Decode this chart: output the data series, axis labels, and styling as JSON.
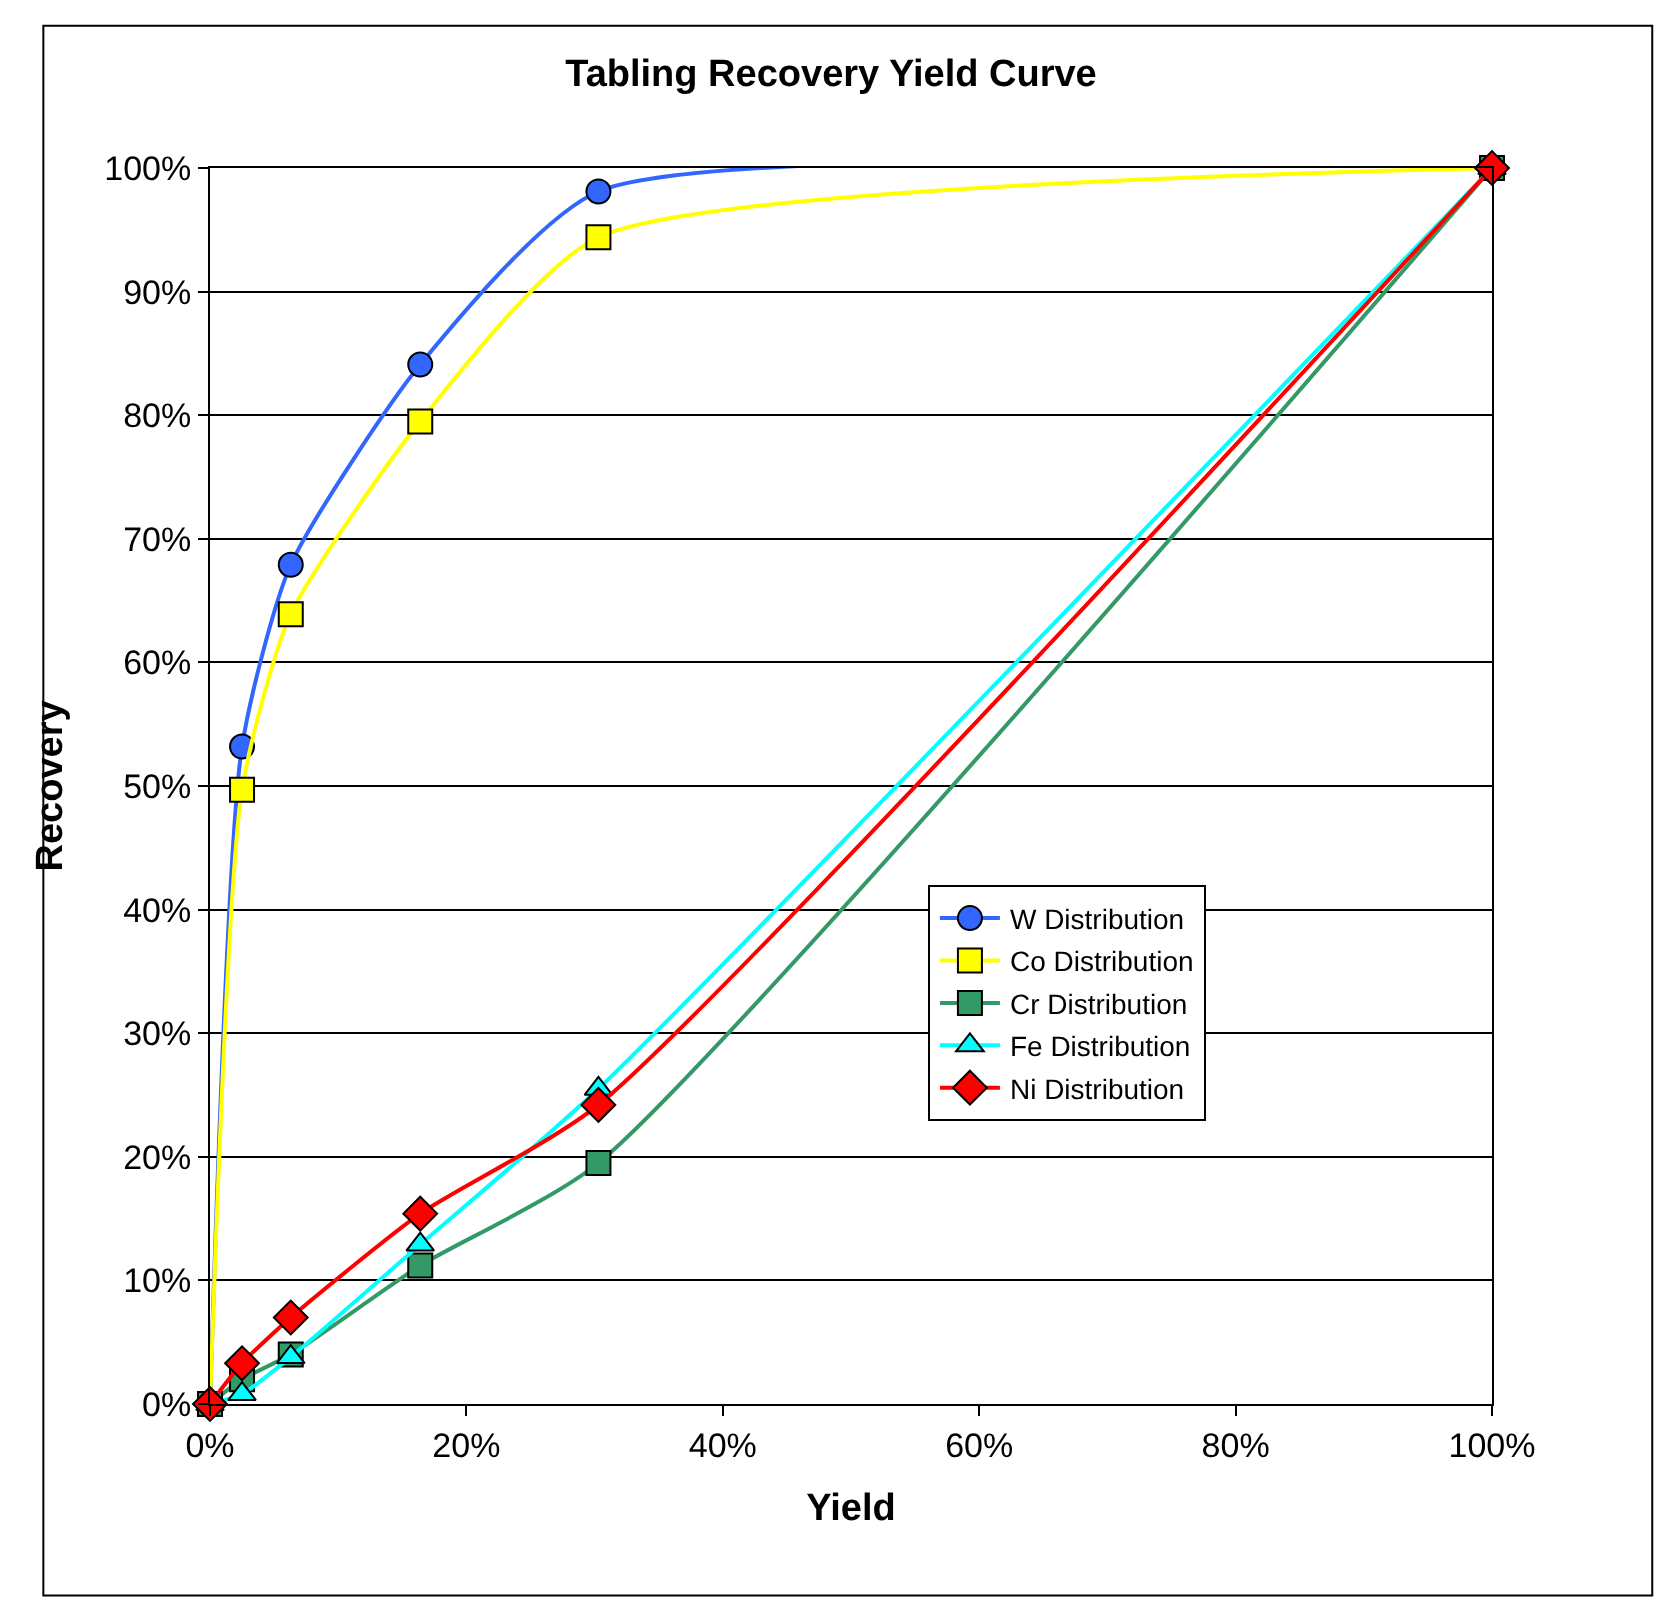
{
  "chart_data": {
    "type": "line",
    "title": "Tabling Recovery Yield Curve",
    "xlabel": "Yield",
    "ylabel": "Recovery",
    "x": [
      0,
      2.5,
      6.3,
      16.4,
      30.3,
      100
    ],
    "series": [
      {
        "name": "W Distribution",
        "color": "#3366ff",
        "marker": "circle",
        "values": [
          0,
          53.2,
          67.9,
          84.1,
          98.1,
          100
        ]
      },
      {
        "name": "Co Distribution",
        "color": "#ffff00",
        "marker": "square",
        "values": [
          0,
          49.7,
          63.9,
          79.5,
          94.4,
          100
        ]
      },
      {
        "name": "Cr Distribution",
        "color": "#339966",
        "marker": "square",
        "values": [
          0,
          2.0,
          4.0,
          11.2,
          19.5,
          100
        ]
      },
      {
        "name": "Fe Distribution",
        "color": "#00ffff",
        "marker": "triangle",
        "values": [
          0,
          0.8,
          3.8,
          12.9,
          25.5,
          100
        ]
      },
      {
        "name": "Ni Distribution",
        "color": "#ff0000",
        "marker": "diamond",
        "values": [
          0,
          3.3,
          7.0,
          15.4,
          24.2,
          100
        ]
      }
    ],
    "xlim": [
      0,
      100
    ],
    "ylim": [
      0,
      100
    ],
    "xticks": [
      {
        "value": 0,
        "label": "0%"
      },
      {
        "value": 20,
        "label": "20%"
      },
      {
        "value": 40,
        "label": "40%"
      },
      {
        "value": 60,
        "label": "60%"
      },
      {
        "value": 80,
        "label": "80%"
      },
      {
        "value": 100,
        "label": "100%"
      }
    ],
    "yticks": [
      {
        "value": 0,
        "label": "0%"
      },
      {
        "value": 10,
        "label": "10%"
      },
      {
        "value": 20,
        "label": "20%"
      },
      {
        "value": 30,
        "label": "30%"
      },
      {
        "value": 40,
        "label": "40%"
      },
      {
        "value": 50,
        "label": "50%"
      },
      {
        "value": 60,
        "label": "60%"
      },
      {
        "value": 70,
        "label": "70%"
      },
      {
        "value": 80,
        "label": "80%"
      },
      {
        "value": 90,
        "label": "90%"
      },
      {
        "value": 100,
        "label": "100%"
      }
    ],
    "grid": "y",
    "legend": "right",
    "line_style": "solid"
  }
}
